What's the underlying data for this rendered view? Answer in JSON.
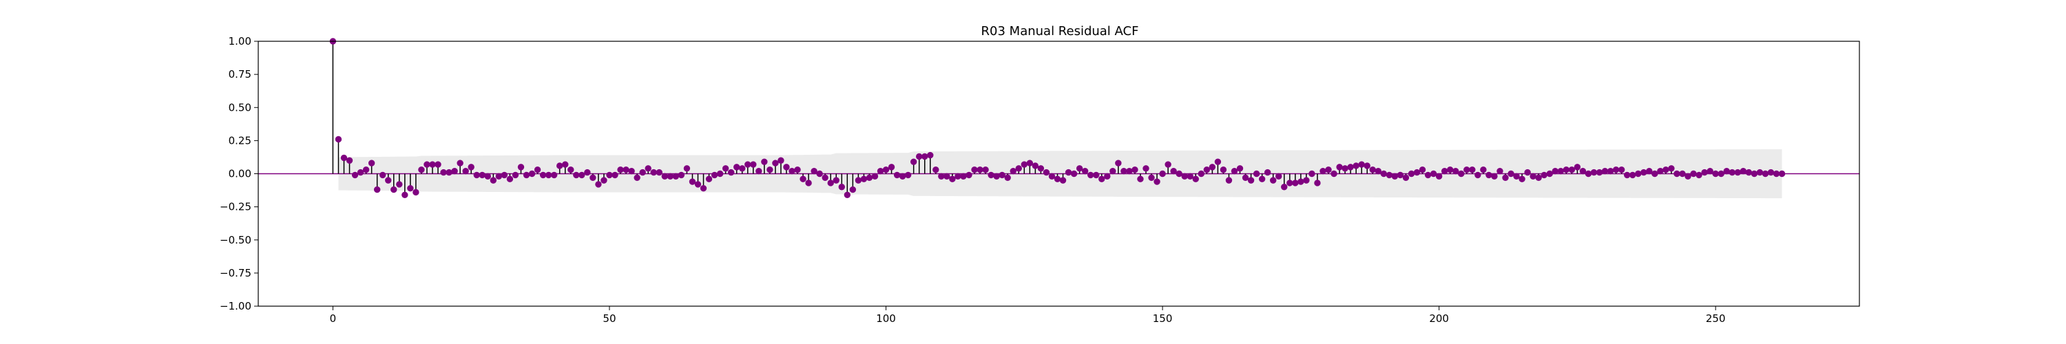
{
  "chart_data": {
    "type": "stem",
    "title": "R03 Manual Residual ACF",
    "xlabel": "",
    "ylabel": "",
    "xlim": [
      -13.5,
      276
    ],
    "ylim": [
      -1.0,
      1.0
    ],
    "x_ticks": [
      0,
      50,
      100,
      150,
      200,
      250
    ],
    "x_tick_labels": [
      "0",
      "50",
      "100",
      "150",
      "200",
      "250"
    ],
    "y_ticks": [
      -1.0,
      -0.75,
      -0.5,
      -0.25,
      0.0,
      0.25,
      0.5,
      0.75,
      1.0
    ],
    "y_tick_labels": [
      "−1.00",
      "−0.75",
      "−0.50",
      "−0.25",
      "0.00",
      "0.25",
      "0.50",
      "0.75",
      "1.00"
    ],
    "grid": false,
    "colors": {
      "marker": "#800080",
      "zero_line": "#800080",
      "stem": "#000000",
      "confidence_band": "#ebebeb"
    },
    "confidence_band": {
      "lags": [
        1,
        15,
        16,
        40,
        80,
        90,
        91,
        104,
        105,
        150,
        200,
        262
      ],
      "upper": [
        0.125,
        0.13,
        0.135,
        0.14,
        0.14,
        0.145,
        0.155,
        0.158,
        0.168,
        0.175,
        0.18,
        0.185
      ]
    },
    "acf": [
      1.0,
      0.26,
      0.12,
      0.1,
      -0.01,
      0.01,
      0.03,
      0.08,
      -0.12,
      -0.01,
      -0.05,
      -0.12,
      -0.08,
      -0.16,
      -0.11,
      -0.14,
      0.03,
      0.07,
      0.07,
      0.07,
      0.01,
      0.01,
      0.02,
      0.08,
      0.02,
      0.05,
      -0.01,
      -0.01,
      -0.02,
      -0.05,
      -0.02,
      -0.01,
      -0.04,
      -0.01,
      0.05,
      -0.01,
      0.0,
      0.03,
      -0.01,
      -0.01,
      -0.01,
      0.06,
      0.07,
      0.03,
      -0.01,
      -0.01,
      0.01,
      -0.03,
      -0.08,
      -0.05,
      -0.01,
      -0.01,
      0.03,
      0.03,
      0.02,
      -0.03,
      0.01,
      0.04,
      0.01,
      0.01,
      -0.02,
      -0.02,
      -0.02,
      -0.01,
      0.04,
      -0.06,
      -0.08,
      -0.11,
      -0.04,
      -0.01,
      0.0,
      0.04,
      0.01,
      0.05,
      0.04,
      0.07,
      0.07,
      0.02,
      0.09,
      0.03,
      0.08,
      0.1,
      0.05,
      0.02,
      0.03,
      -0.04,
      -0.07,
      0.02,
      0.0,
      -0.03,
      -0.07,
      -0.05,
      -0.1,
      -0.16,
      -0.12,
      -0.05,
      -0.04,
      -0.03,
      -0.02,
      0.02,
      0.03,
      0.05,
      -0.01,
      -0.02,
      -0.01,
      0.09,
      0.13,
      0.13,
      0.14,
      0.03,
      -0.02,
      -0.02,
      -0.04,
      -0.02,
      -0.02,
      -0.01,
      0.03,
      0.03,
      0.03,
      -0.01,
      -0.02,
      -0.01,
      -0.03,
      0.02,
      0.04,
      0.07,
      0.08,
      0.06,
      0.04,
      0.01,
      -0.02,
      -0.04,
      -0.05,
      0.01,
      0.0,
      0.04,
      0.02,
      -0.01,
      -0.01,
      -0.04,
      -0.02,
      0.02,
      0.08,
      0.02,
      0.02,
      0.03,
      -0.04,
      0.04,
      -0.03,
      -0.06,
      0.0,
      0.07,
      0.02,
      0.0,
      -0.02,
      -0.02,
      -0.04,
      0.0,
      0.03,
      0.05,
      0.09,
      0.03,
      -0.05,
      0.02,
      0.04,
      -0.03,
      -0.05,
      0.0,
      -0.04,
      0.01,
      -0.05,
      -0.02,
      -0.1,
      -0.07,
      -0.07,
      -0.06,
      -0.05,
      0.0,
      -0.07,
      0.02,
      0.03,
      0.0,
      0.05,
      0.04,
      0.05,
      0.06,
      0.07,
      0.06,
      0.03,
      0.02,
      0.0,
      -0.01,
      -0.02,
      -0.01,
      -0.03,
      0.0,
      0.01,
      0.03,
      -0.01,
      0.0,
      -0.02,
      0.02,
      0.03,
      0.02,
      0.0,
      0.03,
      0.03,
      -0.01,
      0.03,
      -0.01,
      -0.02,
      0.02,
      -0.03,
      0.0,
      -0.02,
      -0.04,
      0.01,
      -0.02,
      -0.03,
      -0.01,
      0.0,
      0.02,
      0.02,
      0.03,
      0.03,
      0.05,
      0.02,
      0.0,
      0.01,
      0.01,
      0.02,
      0.02,
      0.03,
      0.03,
      -0.01,
      -0.01,
      0.0,
      0.01,
      0.02,
      0.0,
      0.02,
      0.03,
      0.04,
      0.0,
      0.0,
      -0.02,
      0.0,
      -0.01,
      0.01,
      0.02,
      0.0,
      0.0,
      0.02,
      0.01,
      0.01,
      0.02,
      0.01,
      0.0,
      0.01,
      0.0,
      0.01,
      0.0,
      0.0
    ]
  }
}
